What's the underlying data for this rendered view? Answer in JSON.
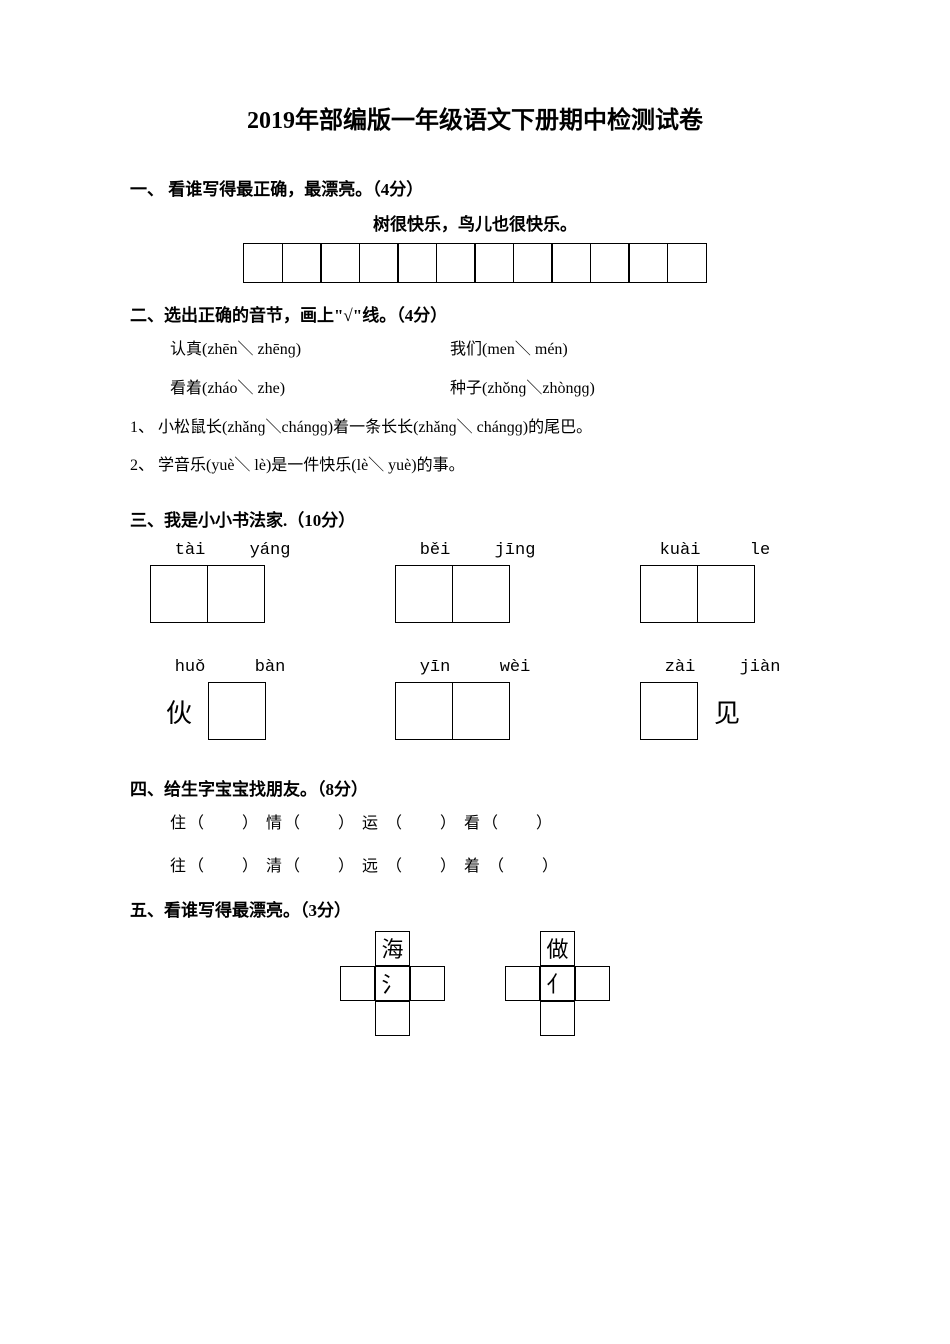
{
  "title": "2019年部编版一年级语文下册期中检测试卷",
  "section1": {
    "header": "一、 看谁写得最正确，最漂亮。（4分）",
    "sentence": "树很快乐，鸟儿也很快乐。",
    "box_count": 12
  },
  "section2": {
    "header": "二、选出正确的音节，画上\"√\"线。（4分）",
    "row1_left": "认真(zhēn＼ zhēnɡ)",
    "row1_right": "我们(men＼ mén)",
    "row2_left": "看着(zháo＼ zhe)",
    "row2_right": "种子(zhǒnɡ＼zhònɡɡ)",
    "line1": "1、 小松鼠长(zhǎnɡ＼chánɡɡ)着一条长长(zhǎnɡ＼ chánɡɡ)的尾巴。",
    "line2": "2、 学音乐(yuè＼ lè)是一件快乐(lè＼ yuè)的事。"
  },
  "section3": {
    "header": "三、我是小小书法家.（10分）",
    "row1": [
      {
        "p1": "tài",
        "p2": "yánɡ",
        "c1": "",
        "c2": ""
      },
      {
        "p1": "běi",
        "p2": "jīnɡ",
        "c1": "",
        "c2": ""
      },
      {
        "p1": "kuài",
        "p2": "le",
        "c1": "",
        "c2": ""
      }
    ],
    "row2": [
      {
        "p1": "huǒ",
        "p2": "bàn",
        "c1": "伙",
        "c2": ""
      },
      {
        "p1": "yīn",
        "p2": "wèi",
        "c1": "",
        "c2": ""
      },
      {
        "p1": "zài",
        "p2": "jiàn",
        "c1": "",
        "c2": "见"
      }
    ]
  },
  "section4": {
    "header": "四、给生字宝宝找朋友。（8分）",
    "line1": "住（　　） 情（　　） 运 （　　） 看（　　）",
    "line2": "往（　　） 清（　　） 远 （　　） 着 （　　）"
  },
  "section5": {
    "header": "五、看谁写得最漂亮。（3分）",
    "grid1_top": "海",
    "grid1_center": "氵",
    "grid2_top": "做",
    "grid2_center": "亻"
  },
  "style": {
    "background_color": "#ffffff",
    "text_color": "#000000",
    "title_fontsize": 24,
    "body_fontsize": 16,
    "header_fontsize": 17
  }
}
